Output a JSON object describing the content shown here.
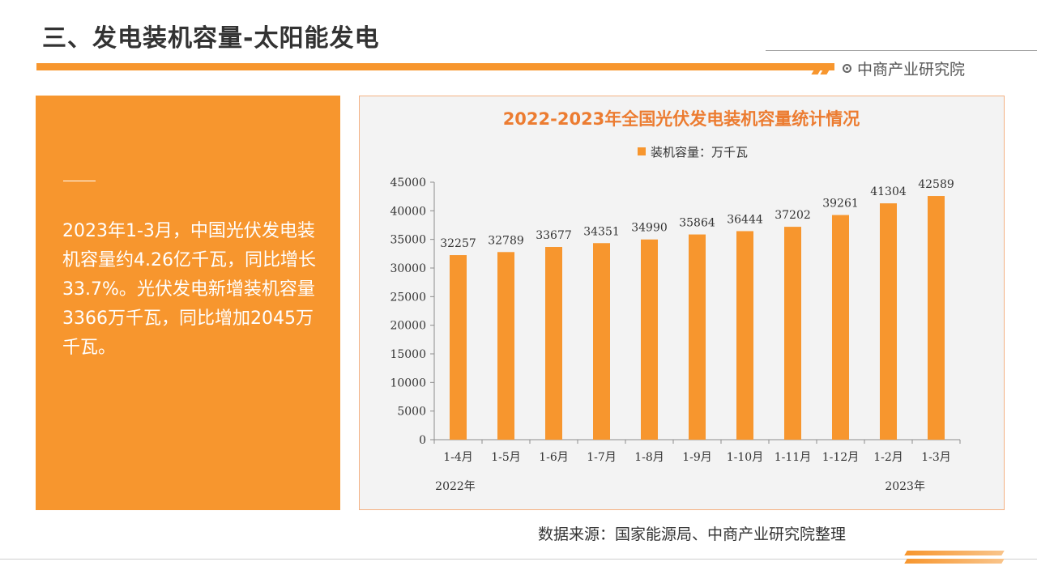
{
  "page": {
    "title": "三、发电装机容量-太阳能发电",
    "brand": "中商产业研究院",
    "summary": "2023年1-3月，中国光伏发电装机容量约4.26亿千瓦，同比增长33.7%。光伏发电新增装机容量3366万千瓦，同比增加2045万千瓦。",
    "source": "数据来源：国家能源局、中商产业研究院整理"
  },
  "colors": {
    "accent": "#f7962e",
    "chart_bg": "#f3f3f3",
    "title_color": "#ec7c31"
  },
  "chart_data": {
    "type": "bar",
    "title": "2022-2023年全国光伏发电装机容量统计情况",
    "legend": "装机容量：万千瓦",
    "legend_position": "top",
    "categories": [
      "1-4月",
      "1-5月",
      "1-6月",
      "1-7月",
      "1-8月",
      "1-9月",
      "1-10月",
      "1-11月",
      "1-12月",
      "1-2月",
      "1-3月"
    ],
    "values": [
      32257,
      32789,
      33677,
      34351,
      34990,
      35864,
      36444,
      37202,
      39261,
      41304,
      42589
    ],
    "year_labels": [
      "2022年",
      "2023年"
    ],
    "yticks": [
      0,
      5000,
      10000,
      15000,
      20000,
      25000,
      30000,
      35000,
      40000,
      45000
    ],
    "ylim": [
      0,
      45000
    ],
    "grid": false
  }
}
